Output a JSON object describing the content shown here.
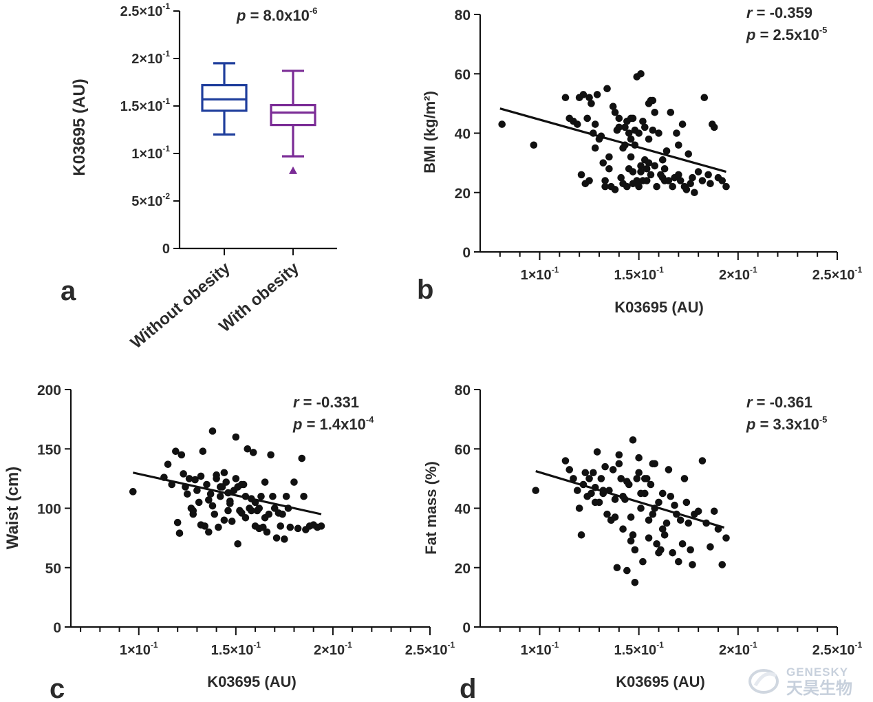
{
  "panels": {
    "a": {
      "letter": "a",
      "ylabel": "K03695 (AU)",
      "yticks": [
        {
          "v": 0,
          "base": "0",
          "exp": ""
        },
        {
          "v": 0.05,
          "base": "5×10",
          "exp": "-2"
        },
        {
          "v": 0.1,
          "base": "1×10",
          "exp": "-1"
        },
        {
          "v": 0.15,
          "base": "1.5×10",
          "exp": "-1"
        },
        {
          "v": 0.2,
          "base": "2×10",
          "exp": "-1"
        },
        {
          "v": 0.25,
          "base": "2.5×10",
          "exp": "-1"
        }
      ],
      "p_base": "8.0x10",
      "p_exp": "-6",
      "categories": [
        "Without obesity",
        "With obesity"
      ],
      "colors": {
        "without": "#1f3e9c",
        "with": "#7b2c96"
      }
    },
    "b": {
      "letter": "b",
      "ylabel": "BMI (kg/m²)",
      "xlabel": "K03695 (AU)",
      "r": "-0.359",
      "p_base": "2.5x10",
      "p_exp": "-5"
    },
    "c": {
      "letter": "c",
      "ylabel": "Waist (cm)",
      "xlabel": "K03695 (AU)",
      "r": "-0.331",
      "p_base": "1.4x10",
      "p_exp": "-4"
    },
    "d": {
      "letter": "d",
      "ylabel": "Fat mass (%)",
      "xlabel": "K03695 (AU)",
      "r": "-0.361",
      "p_base": "3.3x10",
      "p_exp": "-5"
    }
  },
  "xticks": [
    {
      "v": 0.1,
      "base": "1×10",
      "exp": "-1"
    },
    {
      "v": 0.15,
      "base": "1.5×10",
      "exp": "-1"
    },
    {
      "v": 0.2,
      "base": "2×10",
      "exp": "-1"
    },
    {
      "v": 0.25,
      "base": "2.5×10",
      "exp": "-1"
    }
  ],
  "watermark": {
    "brand": "GENESKY",
    "cn": "天昊生物"
  },
  "chart_data": [
    {
      "type": "box",
      "panel": "a",
      "title": "",
      "ylabel": "K03695 (AU)",
      "ylim": [
        0,
        0.25
      ],
      "annotation": "p = 8.0x10^-6",
      "categories": [
        "Without obesity",
        "With obesity"
      ],
      "boxes": [
        {
          "name": "Without obesity",
          "min": 0.12,
          "q1": 0.145,
          "median": 0.157,
          "q3": 0.172,
          "max": 0.195,
          "outliers": []
        },
        {
          "name": "With obesity",
          "min": 0.097,
          "q1": 0.13,
          "median": 0.143,
          "q3": 0.151,
          "max": 0.187,
          "outliers": [
            0.082
          ]
        }
      ]
    },
    {
      "type": "scatter",
      "panel": "b",
      "xlabel": "K03695 (AU)",
      "ylabel": "BMI (kg/m²)",
      "xlim": [
        0.07,
        0.25
      ],
      "ylim": [
        0,
        80
      ],
      "annotations": {
        "r": -0.359,
        "p": "2.5x10^-5"
      },
      "fit_line": {
        "x": [
          0.08,
          0.194
        ],
        "y": [
          48.3,
          27.0
        ]
      },
      "x": [
        0.081,
        0.097,
        0.113,
        0.115,
        0.117,
        0.119,
        0.12,
        0.121,
        0.122,
        0.123,
        0.124,
        0.125,
        0.126,
        0.127,
        0.128,
        0.129,
        0.13,
        0.131,
        0.132,
        0.133,
        0.134,
        0.135,
        0.136,
        0.137,
        0.138,
        0.139,
        0.14,
        0.141,
        0.142,
        0.143,
        0.143,
        0.144,
        0.144,
        0.145,
        0.145,
        0.146,
        0.146,
        0.147,
        0.147,
        0.148,
        0.148,
        0.149,
        0.149,
        0.15,
        0.15,
        0.151,
        0.151,
        0.152,
        0.152,
        0.153,
        0.153,
        0.154,
        0.154,
        0.155,
        0.155,
        0.156,
        0.156,
        0.157,
        0.158,
        0.159,
        0.16,
        0.161,
        0.162,
        0.163,
        0.164,
        0.165,
        0.166,
        0.167,
        0.168,
        0.169,
        0.17,
        0.171,
        0.172,
        0.173,
        0.174,
        0.175,
        0.176,
        0.177,
        0.178,
        0.18,
        0.182,
        0.183,
        0.185,
        0.186,
        0.187,
        0.188,
        0.19,
        0.192,
        0.194,
        0.138,
        0.142,
        0.147,
        0.151,
        0.158,
        0.162,
        0.135,
        0.128,
        0.146,
        0.155,
        0.17,
        0.125,
        0.133,
        0.157,
        0.163,
        0.149,
        0.14
      ],
      "y": [
        43,
        36,
        52,
        45,
        44,
        43,
        52,
        26,
        53,
        23,
        45,
        52,
        50,
        40,
        35,
        53,
        38,
        39,
        30,
        24,
        55,
        28,
        22,
        49,
        47,
        41,
        45,
        25,
        23,
        36,
        42,
        44,
        22,
        28,
        40,
        32,
        45,
        23,
        27,
        36,
        41,
        24,
        59,
        22,
        40,
        29,
        60,
        24,
        44,
        31,
        42,
        28,
        24,
        50,
        38,
        51,
        26,
        51,
        29,
        22,
        40,
        26,
        25,
        24,
        34,
        24,
        47,
        22,
        25,
        40,
        26,
        24,
        43,
        22,
        21,
        33,
        23,
        25,
        20,
        27,
        24,
        52,
        26,
        23,
        43,
        42,
        25,
        24,
        22,
        21,
        35,
        45,
        27,
        47,
        31,
        32,
        43,
        38,
        30,
        36,
        24,
        22,
        41,
        28,
        23,
        42
      ]
    },
    {
      "type": "scatter",
      "panel": "c",
      "xlabel": "K03695 (AU)",
      "ylabel": "Waist (cm)",
      "xlim": [
        0.065,
        0.25
      ],
      "ylim": [
        0,
        200
      ],
      "annotations": {
        "r": -0.331,
        "p": "1.4x10^-4"
      },
      "fit_line": {
        "x": [
          0.097,
          0.194
        ],
        "y": [
          130,
          95
        ]
      },
      "x": [
        0.097,
        0.113,
        0.115,
        0.117,
        0.119,
        0.12,
        0.121,
        0.122,
        0.123,
        0.124,
        0.125,
        0.126,
        0.127,
        0.128,
        0.129,
        0.13,
        0.131,
        0.132,
        0.133,
        0.134,
        0.135,
        0.136,
        0.137,
        0.138,
        0.139,
        0.14,
        0.141,
        0.142,
        0.143,
        0.144,
        0.145,
        0.146,
        0.147,
        0.148,
        0.149,
        0.15,
        0.151,
        0.152,
        0.153,
        0.154,
        0.155,
        0.156,
        0.157,
        0.158,
        0.159,
        0.16,
        0.161,
        0.162,
        0.163,
        0.164,
        0.165,
        0.166,
        0.167,
        0.168,
        0.169,
        0.17,
        0.171,
        0.172,
        0.173,
        0.174,
        0.175,
        0.176,
        0.177,
        0.178,
        0.18,
        0.182,
        0.184,
        0.185,
        0.186,
        0.188,
        0.19,
        0.192,
        0.194,
        0.138,
        0.142,
        0.146,
        0.15,
        0.155,
        0.16,
        0.165,
        0.132,
        0.128,
        0.147,
        0.153,
        0.158,
        0.136,
        0.144,
        0.14,
        0.151,
        0.162
      ],
      "y": [
        114,
        126,
        137,
        120,
        148,
        88,
        79,
        145,
        129,
        118,
        112,
        125,
        100,
        98,
        124,
        115,
        105,
        86,
        148,
        85,
        120,
        107,
        112,
        165,
        95,
        125,
        84,
        110,
        118,
        130,
        122,
        98,
        106,
        89,
        115,
        160,
        118,
        98,
        96,
        120,
        92,
        150,
        100,
        108,
        147,
        85,
        98,
        83,
        110,
        84,
        122,
        80,
        95,
        145,
        110,
        100,
        75,
        96,
        85,
        95,
        74,
        110,
        100,
        84,
        122,
        83,
        142,
        110,
        82,
        85,
        86,
        84,
        85,
        102,
        118,
        113,
        125,
        110,
        105,
        92,
        127,
        95,
        104,
        120,
        98,
        80,
        90,
        128,
        70,
        100
      ]
    },
    {
      "type": "scatter",
      "panel": "d",
      "xlabel": "K03695 (AU)",
      "ylabel": "Fat mass (%)",
      "xlim": [
        0.07,
        0.25
      ],
      "ylim": [
        0,
        80
      ],
      "annotations": {
        "r": -0.361,
        "p": "3.3x10^-5"
      },
      "fit_line": {
        "x": [
          0.098,
          0.193
        ],
        "y": [
          52.5,
          33.5
        ]
      },
      "x": [
        0.098,
        0.113,
        0.115,
        0.117,
        0.119,
        0.12,
        0.121,
        0.122,
        0.123,
        0.124,
        0.125,
        0.126,
        0.127,
        0.128,
        0.129,
        0.13,
        0.131,
        0.132,
        0.133,
        0.134,
        0.135,
        0.136,
        0.137,
        0.138,
        0.139,
        0.14,
        0.141,
        0.142,
        0.143,
        0.144,
        0.145,
        0.146,
        0.147,
        0.148,
        0.149,
        0.15,
        0.151,
        0.152,
        0.153,
        0.154,
        0.155,
        0.156,
        0.157,
        0.158,
        0.159,
        0.16,
        0.161,
        0.162,
        0.163,
        0.164,
        0.165,
        0.166,
        0.167,
        0.168,
        0.169,
        0.17,
        0.171,
        0.172,
        0.173,
        0.174,
        0.175,
        0.176,
        0.177,
        0.178,
        0.18,
        0.182,
        0.184,
        0.186,
        0.188,
        0.19,
        0.192,
        0.194,
        0.138,
        0.142,
        0.146,
        0.15,
        0.155,
        0.16,
        0.132,
        0.128,
        0.147,
        0.153,
        0.158,
        0.136,
        0.144,
        0.14,
        0.151,
        0.162,
        0.148,
        0.157
      ],
      "y": [
        46,
        56,
        53,
        50,
        46,
        40,
        31,
        48,
        52,
        44,
        50,
        45,
        52,
        47,
        59,
        42,
        50,
        45,
        54,
        38,
        46,
        36,
        53,
        43,
        20,
        55,
        50,
        33,
        43,
        19,
        48,
        37,
        63,
        15,
        50,
        57,
        40,
        22,
        45,
        50,
        30,
        48,
        38,
        55,
        28,
        42,
        26,
        45,
        31,
        35,
        53,
        44,
        25,
        41,
        38,
        22,
        36,
        28,
        50,
        42,
        35,
        26,
        21,
        38,
        39,
        56,
        35,
        27,
        39,
        33,
        21,
        30,
        37,
        44,
        29,
        52,
        36,
        25,
        46,
        42,
        31,
        50,
        40,
        36,
        49,
        58,
        45,
        33,
        26,
        55
      ]
    }
  ]
}
